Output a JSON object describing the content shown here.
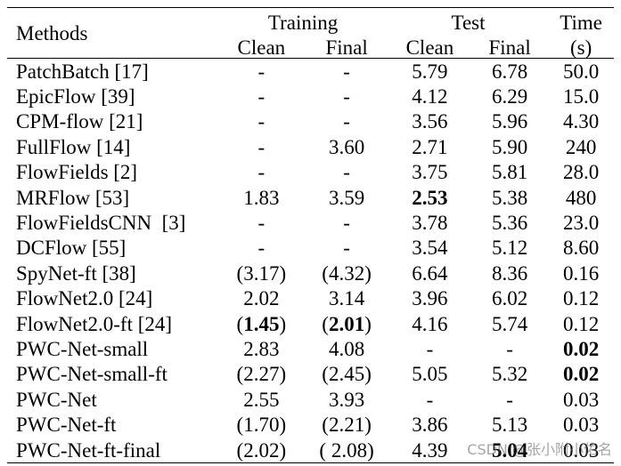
{
  "header": {
    "methods": "Methods",
    "training": "Training",
    "test": "Test",
    "time": "Time",
    "time_unit": "(s)",
    "clean": "Clean",
    "final": "Final"
  },
  "rows": [
    {
      "method": "PatchBatch [17]",
      "train_clean": "-",
      "train_final": "-",
      "test_clean": "5.79",
      "test_final": "6.78",
      "time": "50.0"
    },
    {
      "method": "EpicFlow [39]",
      "train_clean": "-",
      "train_final": "-",
      "test_clean": "4.12",
      "test_final": "6.29",
      "time": "15.0"
    },
    {
      "method": "CPM-flow [21]",
      "train_clean": "-",
      "train_final": "-",
      "test_clean": "3.56",
      "test_final": "5.96",
      "time": "4.30"
    },
    {
      "method": "FullFlow [14]",
      "train_clean": "-",
      "train_final": "3.60",
      "test_clean": "2.71",
      "test_final": "5.90",
      "time": "240"
    },
    {
      "method": "FlowFields [2]",
      "train_clean": "-",
      "train_final": "-",
      "test_clean": "3.75",
      "test_final": "5.81",
      "time": "28.0"
    },
    {
      "method": "MRFlow [53]",
      "train_clean": "1.83",
      "train_final": "3.59",
      "test_clean": "2.53",
      "test_final": "5.38",
      "time": "480"
    },
    {
      "method": "FlowFieldsCNN  [3]",
      "train_clean": "-",
      "train_final": "-",
      "test_clean": "3.78",
      "test_final": "5.36",
      "time": "23.0"
    },
    {
      "method": "DCFlow [55]",
      "train_clean": "-",
      "train_final": "-",
      "test_clean": "3.54",
      "test_final": "5.12",
      "time": "8.60"
    },
    {
      "method": "SpyNet-ft [38]",
      "train_clean": "(3.17)",
      "train_final": "(4.32)",
      "test_clean": "6.64",
      "test_final": "8.36",
      "time": "0.16"
    },
    {
      "method": "FlowNet2.0 [24]",
      "train_clean": "2.02",
      "train_final": "3.14",
      "test_clean": "3.96",
      "test_final": "6.02",
      "time": "0.12"
    },
    {
      "method": "FlowNet2.0-ft [24]",
      "train_clean_open": "(",
      "train_clean_val": "1.45",
      "train_clean_close": ")",
      "train_final_open": "(",
      "train_final_val": "2.01",
      "train_final_close": ")",
      "test_clean": "4.16",
      "test_final": "5.74",
      "time": "0.12"
    },
    {
      "method": "PWC-Net-small",
      "train_clean": "2.83",
      "train_final": "4.08",
      "test_clean": "-",
      "test_final": "-",
      "time": "0.02"
    },
    {
      "method": "PWC-Net-small-ft",
      "train_clean": "(2.27)",
      "train_final": "(2.45)",
      "test_clean": "5.05",
      "test_final": "5.32",
      "time": "0.02"
    },
    {
      "method": "PWC-Net",
      "train_clean": "2.55",
      "train_final": "3.93",
      "test_clean": "-",
      "test_final": "-",
      "time": "0.03"
    },
    {
      "method": "PWC-Net-ft",
      "train_clean": "(1.70)",
      "train_final": "(2.21)",
      "test_clean": "3.86",
      "test_final": "5.13",
      "time": "0.03"
    },
    {
      "method": "PWC-Net-ft-final",
      "train_clean": "(2.02)",
      "train_final": "( 2.08)",
      "test_clean": "4.39",
      "test_final": "5.04",
      "time": "0.03"
    }
  ],
  "watermark": "CSDN @张小附小佑名"
}
